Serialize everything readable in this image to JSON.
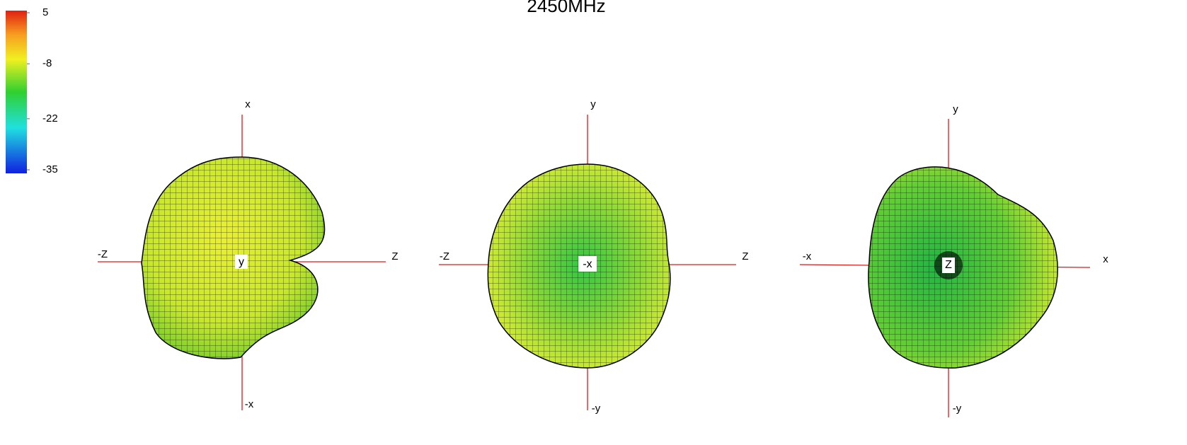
{
  "title": "2450MHz",
  "colorbar": {
    "ticks": [
      5,
      -8,
      -22,
      -35
    ]
  },
  "views": [
    {
      "center": "y",
      "top": "x",
      "bottom": "-x",
      "left": "-Z",
      "right": "Z"
    },
    {
      "center": "-x",
      "top": "y",
      "bottom": "-y",
      "left": "-Z",
      "right": "Z"
    },
    {
      "center": "Z",
      "top": "y",
      "bottom": "-y",
      "left": "-x",
      "right": "x"
    }
  ]
}
